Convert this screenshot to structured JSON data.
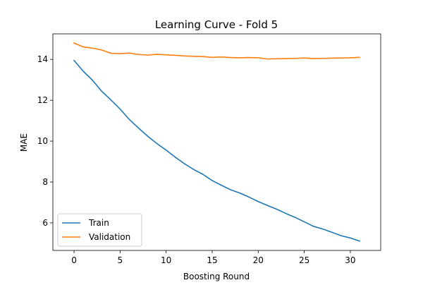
{
  "chart_data": {
    "type": "line",
    "title": "Learning Curve - Fold 5",
    "xlabel": "Boosting Round",
    "ylabel": "MAE",
    "xlim": [
      -2.3,
      33.3
    ],
    "ylim": [
      4.65,
      15.25
    ],
    "xticks": [
      0,
      5,
      10,
      15,
      20,
      25,
      30
    ],
    "yticks": [
      6,
      8,
      10,
      12,
      14
    ],
    "grid": false,
    "legend_position": "lower-left",
    "x": [
      0,
      1,
      2,
      3,
      4,
      5,
      6,
      7,
      8,
      9,
      10,
      11,
      12,
      13,
      14,
      15,
      16,
      17,
      18,
      19,
      20,
      21,
      22,
      23,
      24,
      25,
      26,
      27,
      28,
      29,
      30,
      31
    ],
    "series": [
      {
        "name": "Train",
        "color": "#1f77b4",
        "values": [
          13.95,
          13.42,
          12.98,
          12.44,
          12.02,
          11.57,
          11.06,
          10.64,
          10.24,
          9.88,
          9.56,
          9.21,
          8.89,
          8.61,
          8.37,
          8.07,
          7.84,
          7.62,
          7.46,
          7.26,
          7.04,
          6.85,
          6.67,
          6.46,
          6.27,
          6.05,
          5.83,
          5.7,
          5.54,
          5.37,
          5.26,
          5.11
        ]
      },
      {
        "name": "Validation",
        "color": "#ff7f0e",
        "values": [
          14.8,
          14.61,
          14.55,
          14.46,
          14.3,
          14.28,
          14.31,
          14.24,
          14.21,
          14.25,
          14.22,
          14.2,
          14.17,
          14.15,
          14.14,
          14.1,
          14.12,
          14.09,
          14.08,
          14.09,
          14.08,
          14.02,
          14.03,
          14.04,
          14.05,
          14.07,
          14.04,
          14.05,
          14.06,
          14.07,
          14.08,
          14.1
        ]
      }
    ]
  }
}
